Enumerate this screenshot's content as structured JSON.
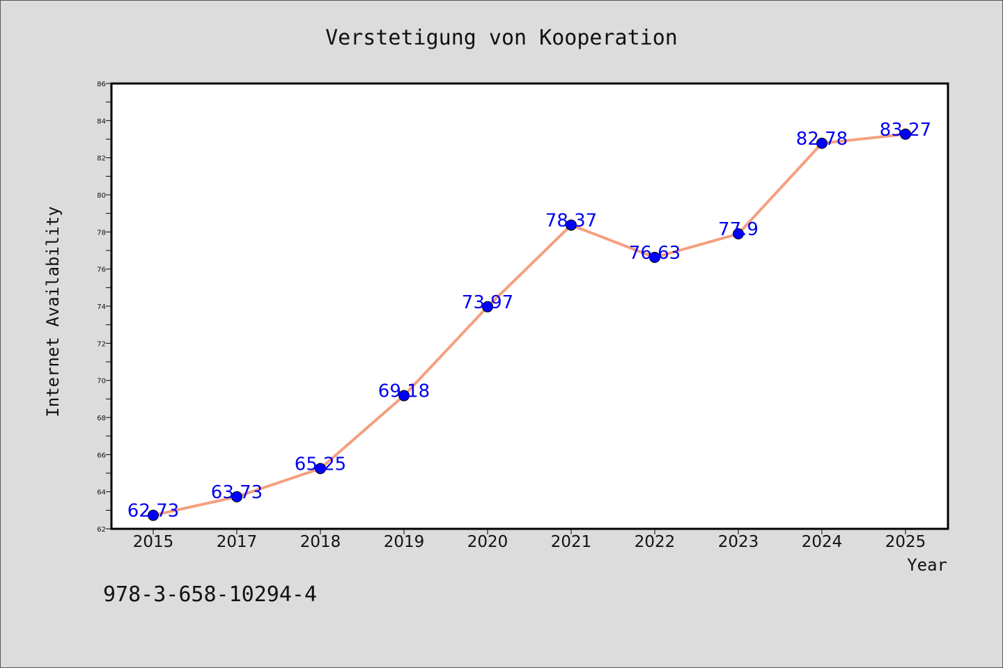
{
  "chart_data": {
    "type": "line",
    "title": "Verstetigung von Kooperation",
    "xlabel": "Year",
    "ylabel": "Internet Availability",
    "categories": [
      "2015",
      "2017",
      "2018",
      "2019",
      "2020",
      "2021",
      "2022",
      "2023",
      "2024",
      "2025"
    ],
    "series": [
      {
        "values": [
          62.73,
          63.73,
          65.25,
          69.18,
          73.97,
          78.37,
          76.63,
          77.9,
          82.78,
          83.27
        ],
        "labels": [
          "62.73",
          "63.73",
          "65.25",
          "69.18",
          "73.97",
          "78.37",
          "76.63",
          "77.9",
          "82.78",
          "83.27"
        ],
        "line_color": "#f4a07f",
        "marker_color": "#0000ff"
      }
    ],
    "ylim": [
      62,
      86
    ],
    "yticks": [
      "62",
      "64",
      "66",
      "68",
      "70",
      "72",
      "74",
      "76",
      "78",
      "80",
      "82",
      "84",
      "86"
    ],
    "grid": false,
    "legend": "none"
  },
  "footer": {
    "code": "978-3-658-10294-4"
  },
  "colors": {
    "background": "#dcdcdc",
    "plot_background": "#ffffff",
    "data_label": "#0000ee"
  }
}
